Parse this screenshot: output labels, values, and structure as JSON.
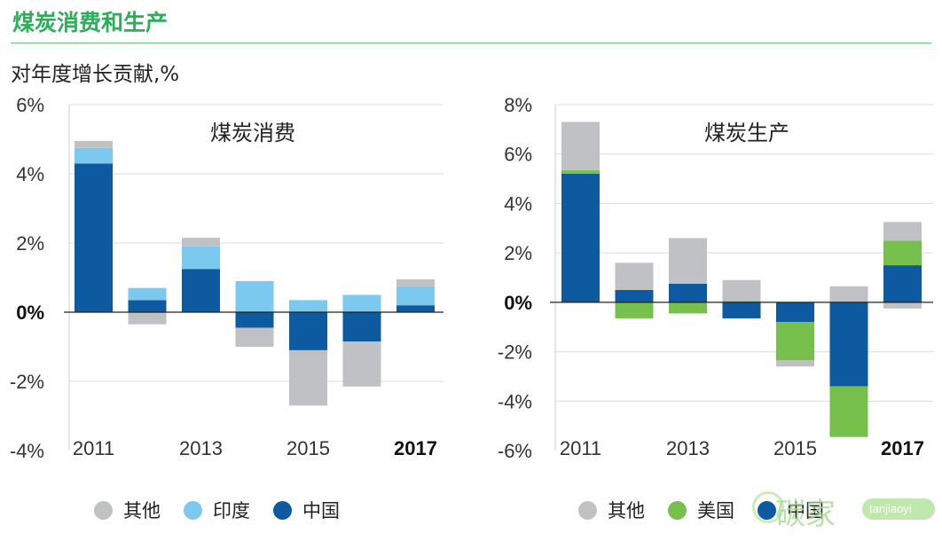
{
  "header": {
    "title": "煤炭消费和生产",
    "subtitle": "对年度增长贡献,%"
  },
  "legend_left": [
    {
      "label": "其他",
      "color": "#c0c1c4"
    },
    {
      "label": "印度",
      "color": "#7cc9ef"
    },
    {
      "label": "中国",
      "color": "#0d5aa0"
    }
  ],
  "legend_right": [
    {
      "label": "其他",
      "color": "#c0c1c4"
    },
    {
      "label": "美国",
      "color": "#77c04e"
    },
    {
      "label": "中国",
      "color": "#0d5aa0"
    }
  ],
  "watermark": {
    "text": "碳家",
    "badge": "tanjiaoyi .com"
  },
  "chart_data": [
    {
      "type": "bar",
      "stacked": true,
      "title": "煤炭消费",
      "ylim": [
        -4,
        6
      ],
      "yticks": [
        6,
        4,
        2,
        0,
        -2,
        -4
      ],
      "ytick_labels": [
        "6%",
        "4%",
        "2%",
        "0%",
        "-2%",
        "-4%"
      ],
      "bold_ticks": [
        "0%"
      ],
      "categories": [
        "2011",
        "2012",
        "2013",
        "2014",
        "2015",
        "2016",
        "2017"
      ],
      "xtick_labels": [
        "2011",
        "",
        "2013",
        "",
        "2015",
        "",
        "2017"
      ],
      "bold_xticks": [
        "2017"
      ],
      "series": [
        {
          "name": "中国",
          "color": "#0d5aa0",
          "values": [
            4.3,
            0.35,
            1.25,
            -0.45,
            -1.1,
            -0.85,
            0.2
          ]
        },
        {
          "name": "印度",
          "color": "#7cc9ef",
          "values": [
            0.45,
            0.35,
            0.65,
            0.9,
            0.35,
            0.5,
            0.55
          ]
        },
        {
          "name": "其他",
          "color": "#c0c1c4",
          "values": [
            0.2,
            -0.35,
            0.25,
            -0.55,
            -1.6,
            -1.3,
            0.2
          ]
        }
      ],
      "grid": true
    },
    {
      "type": "bar",
      "stacked": true,
      "title": "煤炭生产",
      "ylim": [
        -6,
        8
      ],
      "yticks": [
        8,
        6,
        4,
        2,
        0,
        -2,
        -4,
        -6
      ],
      "ytick_labels": [
        "8%",
        "6%",
        "4%",
        "2%",
        "0%",
        "-2%",
        "-4%",
        "-6%"
      ],
      "bold_ticks": [
        "0%"
      ],
      "categories": [
        "2011",
        "2012",
        "2013",
        "2014",
        "2015",
        "2016",
        "2017"
      ],
      "xtick_labels": [
        "2011",
        "",
        "2013",
        "",
        "2015",
        "",
        "2017"
      ],
      "bold_xticks": [
        "2017"
      ],
      "series": [
        {
          "name": "中国",
          "color": "#0d5aa0",
          "values": [
            5.2,
            0.5,
            0.75,
            -0.65,
            -0.8,
            -3.4,
            1.5
          ]
        },
        {
          "name": "美国",
          "color": "#77c04e",
          "values": [
            0.15,
            -0.65,
            -0.45,
            0.05,
            -1.55,
            -2.05,
            1.0
          ]
        },
        {
          "name": "其他",
          "color": "#c0c1c4",
          "values": [
            1.95,
            1.1,
            1.85,
            0.85,
            -0.25,
            0.65,
            0.75
          ]
        }
      ],
      "extra_negative": [
        {
          "category": "2017",
          "series": "其他",
          "value": -0.25
        }
      ],
      "grid": true
    }
  ]
}
